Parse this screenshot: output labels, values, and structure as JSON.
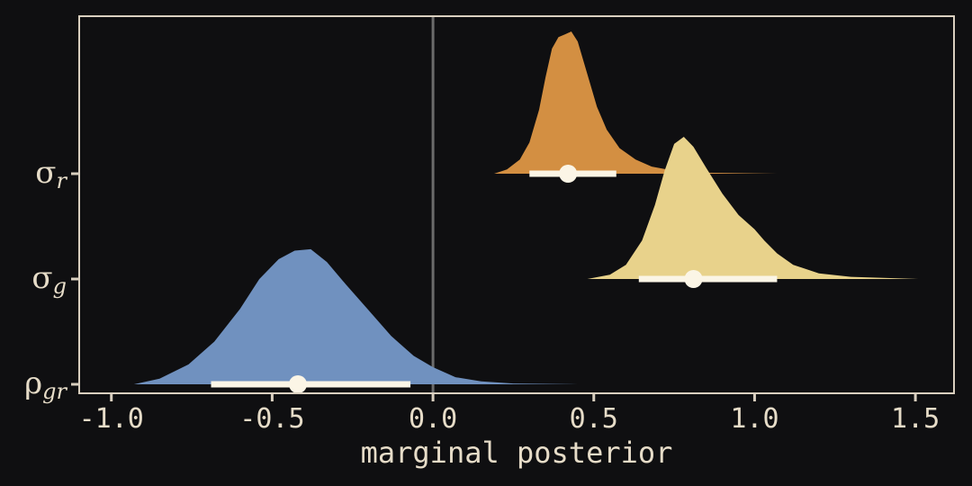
{
  "chart_data": {
    "type": "density-interval",
    "xlabel": "marginal posterior",
    "xlim": [
      -1.1,
      1.62
    ],
    "x_ticks": [
      {
        "value": -1.0,
        "label": "-1.0"
      },
      {
        "value": -0.5,
        "label": "-0.5"
      },
      {
        "value": 0.0,
        "label": "0.0"
      },
      {
        "value": 0.5,
        "label": "0.5"
      },
      {
        "value": 1.0,
        "label": "1.0"
      },
      {
        "value": 1.5,
        "label": "1.5"
      }
    ],
    "reference_line": 0.0,
    "background": "#0f0f11",
    "frame_color": "#d9cfbf",
    "interval_color": "#fbf5e6",
    "series": [
      {
        "label": "σ",
        "subscript": "r",
        "color": "#d38f42",
        "point": 0.42,
        "interval": [
          0.3,
          0.57
        ],
        "density": [
          [
            0.19,
            0.0
          ],
          [
            0.23,
            0.03
          ],
          [
            0.27,
            0.1
          ],
          [
            0.3,
            0.22
          ],
          [
            0.33,
            0.45
          ],
          [
            0.35,
            0.68
          ],
          [
            0.37,
            0.88
          ],
          [
            0.39,
            0.96
          ],
          [
            0.41,
            0.98
          ],
          [
            0.43,
            1.0
          ],
          [
            0.45,
            0.93
          ],
          [
            0.48,
            0.7
          ],
          [
            0.51,
            0.47
          ],
          [
            0.54,
            0.31
          ],
          [
            0.58,
            0.18
          ],
          [
            0.63,
            0.1
          ],
          [
            0.68,
            0.05
          ],
          [
            0.75,
            0.02
          ],
          [
            0.85,
            0.007
          ],
          [
            1.07,
            0.0
          ]
        ]
      },
      {
        "label": "σ",
        "subscript": "g",
        "color": "#e8d28b",
        "point": 0.81,
        "interval": [
          0.64,
          1.07
        ],
        "density": [
          [
            0.48,
            0.0
          ],
          [
            0.55,
            0.03
          ],
          [
            0.6,
            0.1
          ],
          [
            0.65,
            0.27
          ],
          [
            0.69,
            0.52
          ],
          [
            0.72,
            0.76
          ],
          [
            0.75,
            0.95
          ],
          [
            0.78,
            1.0
          ],
          [
            0.81,
            0.93
          ],
          [
            0.85,
            0.78
          ],
          [
            0.9,
            0.6
          ],
          [
            0.95,
            0.45
          ],
          [
            1.0,
            0.35
          ],
          [
            1.03,
            0.27
          ],
          [
            1.07,
            0.18
          ],
          [
            1.12,
            0.1
          ],
          [
            1.2,
            0.04
          ],
          [
            1.3,
            0.015
          ],
          [
            1.51,
            0.0
          ]
        ]
      },
      {
        "label": "ρ",
        "subscript": "gr",
        "color": "#7091bf",
        "point": -0.42,
        "interval": [
          -0.69,
          -0.07
        ],
        "density": [
          [
            -0.93,
            0.0
          ],
          [
            -0.85,
            0.04
          ],
          [
            -0.76,
            0.14
          ],
          [
            -0.68,
            0.3
          ],
          [
            -0.6,
            0.53
          ],
          [
            -0.54,
            0.74
          ],
          [
            -0.48,
            0.88
          ],
          [
            -0.43,
            0.94
          ],
          [
            -0.38,
            0.95
          ],
          [
            -0.33,
            0.86
          ],
          [
            -0.27,
            0.7
          ],
          [
            -0.2,
            0.52
          ],
          [
            -0.13,
            0.34
          ],
          [
            -0.06,
            0.2
          ],
          [
            0.0,
            0.12
          ],
          [
            0.07,
            0.05
          ],
          [
            0.15,
            0.02
          ],
          [
            0.25,
            0.006
          ],
          [
            0.45,
            0.0
          ]
        ]
      }
    ]
  }
}
